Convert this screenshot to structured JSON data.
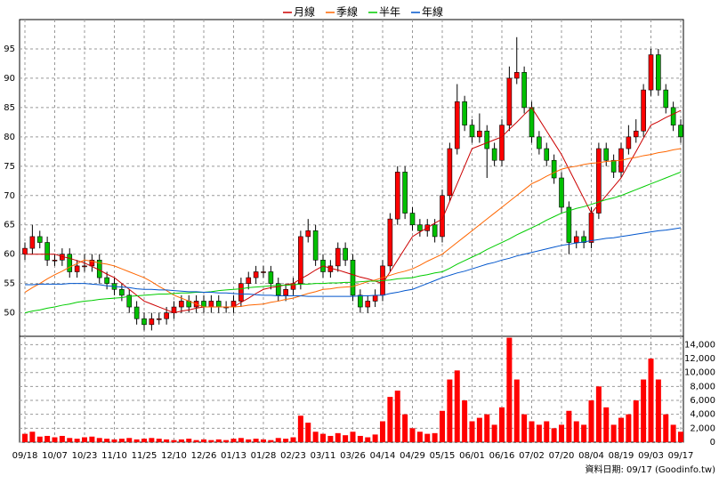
{
  "chart_data": [
    {
      "type": "candlestick",
      "categories": [
        "09/18",
        null,
        null,
        null,
        "10/07",
        null,
        null,
        null,
        "10/23",
        null,
        null,
        null,
        "11/10",
        null,
        null,
        null,
        "11/25",
        null,
        null,
        null,
        "12/10",
        null,
        null,
        null,
        "12/26",
        null,
        null,
        null,
        "01/13",
        null,
        null,
        null,
        "01/28",
        null,
        null,
        null,
        "02/23",
        null,
        null,
        null,
        "03/11",
        null,
        null,
        null,
        "03/26",
        null,
        null,
        null,
        "04/14",
        null,
        null,
        null,
        "04/29",
        null,
        null,
        null,
        "05/15",
        null,
        null,
        null,
        "06/01",
        null,
        null,
        null,
        "06/16",
        null,
        null,
        null,
        "07/02",
        null,
        null,
        null,
        "07/20",
        null,
        null,
        null,
        "08/04",
        null,
        null,
        null,
        "08/19",
        null,
        null,
        null,
        "09/03",
        null,
        null,
        null,
        "09/17"
      ],
      "open": [
        60,
        61,
        63,
        62,
        59,
        59,
        60,
        57,
        58,
        58,
        59,
        56,
        55,
        54,
        53,
        51,
        49,
        48,
        49,
        49,
        50,
        51,
        52,
        51,
        52,
        51,
        52,
        51,
        51,
        52,
        55,
        56,
        57,
        57,
        55,
        53,
        54,
        55,
        63,
        64,
        59,
        57,
        58,
        61,
        59,
        53,
        51,
        52,
        53,
        58,
        66,
        74,
        67,
        65,
        64,
        65,
        63,
        70,
        78,
        86,
        82,
        80,
        81,
        78,
        76,
        82,
        90,
        91,
        85,
        80,
        78,
        76,
        73,
        68,
        62,
        63,
        62,
        67,
        78,
        76,
        74,
        78,
        80,
        81,
        88,
        94,
        88,
        85,
        82
      ],
      "high": [
        62,
        65,
        64,
        63,
        60,
        61,
        61,
        59,
        60,
        60,
        60,
        57,
        56,
        55,
        54,
        52,
        50,
        50,
        50,
        51,
        52,
        53,
        53,
        53,
        53,
        53,
        53,
        52,
        53,
        56,
        57,
        58,
        58,
        58,
        56,
        55,
        56,
        64,
        66,
        65,
        60,
        59,
        62,
        62,
        60,
        54,
        53,
        54,
        59,
        67,
        75,
        75,
        68,
        66,
        66,
        66,
        71,
        79,
        89,
        87,
        83,
        84,
        82,
        79,
        83,
        92,
        97,
        92,
        86,
        81,
        79,
        77,
        74,
        69,
        64,
        64,
        68,
        79,
        79,
        77,
        79,
        82,
        83,
        89,
        95,
        95,
        89,
        86,
        83
      ],
      "low": [
        59,
        60,
        61,
        58,
        58,
        58,
        56,
        56,
        57,
        57,
        55,
        54,
        53,
        52,
        50,
        48,
        47,
        47,
        48,
        48,
        49,
        50,
        50,
        50,
        50,
        50,
        50,
        50,
        50,
        51,
        54,
        55,
        56,
        54,
        52,
        52,
        53,
        54,
        62,
        58,
        56,
        56,
        57,
        58,
        52,
        50,
        50,
        51,
        52,
        57,
        65,
        66,
        64,
        63,
        63,
        62,
        62,
        69,
        77,
        81,
        79,
        79,
        73,
        75,
        75,
        81,
        89,
        84,
        79,
        77,
        75,
        72,
        67,
        60,
        61,
        61,
        61,
        66,
        75,
        73,
        73,
        77,
        79,
        80,
        87,
        87,
        84,
        81,
        79
      ],
      "close": [
        61,
        63,
        62,
        59,
        59,
        60,
        57,
        58,
        58,
        59,
        56,
        55,
        54,
        53,
        51,
        49,
        48,
        49,
        49,
        50,
        51,
        52,
        51,
        52,
        51,
        52,
        51,
        51,
        52,
        55,
        56,
        57,
        57,
        55,
        53,
        54,
        55,
        63,
        64,
        59,
        57,
        58,
        61,
        59,
        53,
        51,
        52,
        53,
        58,
        66,
        74,
        67,
        65,
        64,
        65,
        63,
        70,
        78,
        86,
        82,
        80,
        81,
        78,
        76,
        82,
        90,
        91,
        85,
        80,
        78,
        76,
        73,
        68,
        62,
        63,
        62,
        67,
        78,
        76,
        74,
        78,
        80,
        81,
        88,
        94,
        88,
        85,
        82,
        80
      ],
      "up_color": "#ff0000",
      "down_color": "#00c000",
      "series": [
        {
          "name": "月線",
          "color": "#cc0000",
          "values": [
            60,
            60,
            60,
            60,
            60,
            59.6,
            59.3,
            58.9,
            58.5,
            57.9,
            57.3,
            56.6,
            56,
            55,
            54,
            53,
            52,
            51.5,
            51,
            50.5,
            50,
            50.3,
            50.5,
            50.8,
            51,
            51,
            51,
            51,
            51,
            51.8,
            52.5,
            53.3,
            54,
            54.3,
            54.5,
            54.8,
            55,
            55.8,
            56.5,
            57.3,
            58,
            57.6,
            57.3,
            56.9,
            56.5,
            56.1,
            55.8,
            55.4,
            55,
            57,
            59,
            61,
            63,
            63.8,
            64.5,
            65.3,
            66,
            69,
            72,
            75,
            78,
            78.5,
            79,
            79.5,
            80,
            81.3,
            82.5,
            83.8,
            85,
            83,
            81,
            79,
            77,
            74.5,
            72,
            69.5,
            67,
            68.5,
            70,
            71.5,
            73,
            75.3,
            77.5,
            79.8,
            82,
            82.6,
            83.3,
            83.9,
            84.5
          ]
        },
        {
          "name": "季線",
          "color": "#ff6600",
          "values": [
            53.5,
            54.3,
            55,
            55.8,
            56.5,
            57.1,
            57.8,
            58.4,
            59,
            58.8,
            58.5,
            58.3,
            58,
            57.5,
            57,
            56.5,
            56,
            55.3,
            54.5,
            53.8,
            53,
            52.5,
            52,
            51.5,
            51,
            51,
            51,
            51,
            51,
            51.1,
            51.3,
            51.4,
            51.5,
            51.8,
            52,
            52.3,
            52.5,
            52.9,
            53.3,
            53.6,
            54,
            54.1,
            54.3,
            54.4,
            54.5,
            54.9,
            55.3,
            55.6,
            56,
            56.4,
            56.8,
            57.1,
            57.5,
            58.1,
            58.8,
            59.4,
            60,
            61,
            62,
            63,
            64,
            65,
            66,
            67,
            68,
            69,
            70,
            71,
            72,
            72.6,
            73.3,
            73.9,
            74.5,
            74.8,
            75,
            75.3,
            75.5,
            75.6,
            75.8,
            75.9,
            76,
            76.3,
            76.5,
            76.8,
            77,
            77.3,
            77.5,
            77.8,
            78
          ]
        },
        {
          "name": "半年",
          "color": "#00cc00",
          "values": [
            50,
            50.3,
            50.5,
            50.8,
            51,
            51.3,
            51.5,
            51.8,
            52,
            52.1,
            52.3,
            52.4,
            52.5,
            52.6,
            52.8,
            52.9,
            53,
            53.1,
            53.2,
            53.2,
            53.3,
            53.4,
            53.4,
            53.5,
            53.5,
            53.6,
            53.8,
            53.9,
            54,
            54.1,
            54.3,
            54.4,
            54.5,
            54.6,
            54.7,
            54.7,
            54.8,
            54.9,
            54.9,
            55,
            55,
            55.1,
            55.1,
            55.2,
            55.2,
            55.3,
            55.4,
            55.4,
            55.5,
            55.6,
            55.8,
            55.9,
            56,
            56.3,
            56.5,
            56.8,
            57,
            57.6,
            58.3,
            58.9,
            59.5,
            60.1,
            60.8,
            61.4,
            62,
            62.6,
            63.3,
            63.9,
            64.5,
            65.1,
            65.8,
            66.4,
            67,
            67.4,
            67.8,
            68.1,
            68.5,
            68.9,
            69.3,
            69.6,
            70,
            70.5,
            71,
            71.5,
            72,
            72.5,
            73,
            73.5,
            74
          ]
        },
        {
          "name": "年線",
          "color": "#0055cc",
          "values": [
            54.8,
            54.8,
            54.9,
            54.9,
            54.9,
            54.9,
            55,
            55,
            55,
            54.9,
            54.8,
            54.6,
            54.5,
            54.4,
            54.3,
            54.1,
            54,
            54,
            53.9,
            53.9,
            53.8,
            53.7,
            53.6,
            53.6,
            53.5,
            53.5,
            53.4,
            53.4,
            53.3,
            53.2,
            53.2,
            53.1,
            53,
            53,
            52.9,
            52.9,
            52.9,
            52.9,
            52.8,
            52.8,
            52.8,
            52.8,
            52.8,
            52.8,
            52.8,
            52.9,
            52.9,
            53,
            53,
            53.3,
            53.5,
            53.8,
            54,
            54.5,
            55,
            55.5,
            56,
            56.4,
            56.8,
            57.1,
            57.5,
            57.9,
            58.3,
            58.6,
            59,
            59.3,
            59.7,
            60,
            60.3,
            60.6,
            60.9,
            61.2,
            61.5,
            61.7,
            61.9,
            62.1,
            62.3,
            62.5,
            62.7,
            62.8,
            63,
            63.2,
            63.4,
            63.6,
            63.8,
            64,
            64.1,
            64.3,
            64.5
          ]
        }
      ],
      "ylim": [
        46,
        100
      ],
      "yticks": [
        50,
        55,
        60,
        65,
        70,
        75,
        80,
        85,
        90,
        95
      ],
      "grid": true,
      "note": "資料日期: 09/17 (Goodinfo.tw)"
    },
    {
      "type": "bar",
      "color": "#ff0000",
      "values": [
        1200,
        1500,
        800,
        900,
        700,
        900,
        600,
        500,
        700,
        800,
        600,
        500,
        400,
        500,
        600,
        400,
        500,
        600,
        500,
        400,
        300,
        400,
        500,
        300,
        400,
        300,
        400,
        300,
        500,
        600,
        400,
        500,
        400,
        300,
        600,
        500,
        700,
        3800,
        2800,
        1500,
        1200,
        900,
        1300,
        1000,
        1500,
        900,
        700,
        1100,
        3000,
        6500,
        7400,
        4000,
        2000,
        1500,
        1200,
        1300,
        4500,
        9000,
        10300,
        6000,
        3000,
        3500,
        4000,
        2500,
        5000,
        15000,
        9000,
        4000,
        3000,
        2500,
        3000,
        2000,
        2500,
        4500,
        3000,
        2500,
        6000,
        8000,
        5000,
        2500,
        3500,
        4000,
        6000,
        9000,
        12000,
        9000,
        4000,
        2500,
        1500
      ],
      "ylim": [
        0,
        15200
      ],
      "yticks": [
        0,
        {
          "value": 2000,
          "label": "2,000"
        },
        {
          "value": 4000,
          "label": "4,000"
        },
        {
          "value": 6000,
          "label": "6,000"
        },
        {
          "value": 8000,
          "label": "8,000"
        },
        {
          "value": 10000,
          "label": "10,000"
        },
        {
          "value": 12000,
          "label": "12,000"
        },
        {
          "value": 14000,
          "label": "14,000"
        }
      ],
      "grid": true
    }
  ]
}
